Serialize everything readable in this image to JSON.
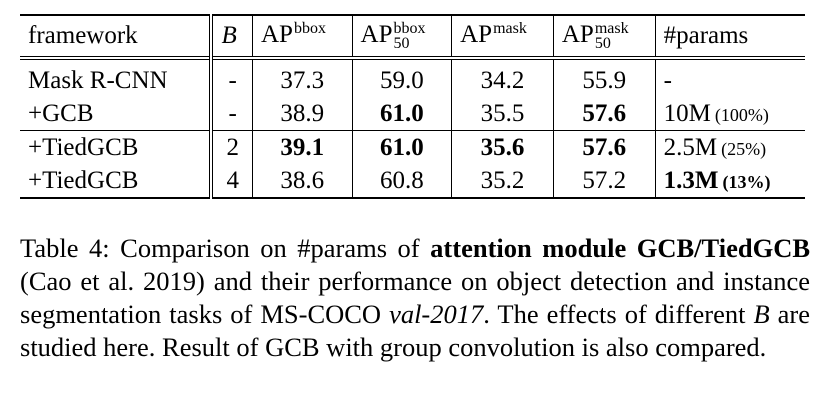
{
  "table": {
    "header": [
      {
        "base": "framework"
      },
      {
        "base": "B",
        "italic": true
      },
      {
        "base": "AP",
        "sup": "bbox"
      },
      {
        "base": "AP",
        "sup": "bbox",
        "sub": "50"
      },
      {
        "base": "AP",
        "sup": "mask"
      },
      {
        "base": "AP",
        "sup": "mask",
        "sub": "50"
      },
      {
        "base": "#params"
      }
    ],
    "rows": [
      [
        {
          "text": "Mask R-CNN"
        },
        {
          "text": "-"
        },
        {
          "text": "37.3"
        },
        {
          "text": "59.0"
        },
        {
          "text": "34.2"
        },
        {
          "text": "55.9"
        },
        {
          "text": "-"
        }
      ],
      [
        {
          "text": "+GCB"
        },
        {
          "text": "-"
        },
        {
          "text": "38.9"
        },
        {
          "text": "61.0",
          "bold": true
        },
        {
          "text": "35.5"
        },
        {
          "text": "57.6",
          "bold": true
        },
        {
          "text": "10M",
          "note": "(100%)"
        }
      ],
      [
        {
          "text": "+TiedGCB"
        },
        {
          "text": "2"
        },
        {
          "text": "39.1",
          "bold": true
        },
        {
          "text": "61.0",
          "bold": true
        },
        {
          "text": "35.6",
          "bold": true
        },
        {
          "text": "57.6",
          "bold": true
        },
        {
          "text": "2.5M",
          "note": "(25%)"
        }
      ],
      [
        {
          "text": "+TiedGCB"
        },
        {
          "text": "4"
        },
        {
          "text": "38.6"
        },
        {
          "text": "60.8"
        },
        {
          "text": "35.2"
        },
        {
          "text": "57.2"
        },
        {
          "text": "1.3M",
          "note": "(13%)",
          "bold": true
        }
      ]
    ]
  },
  "caption": [
    {
      "text": "Table 4: Comparison on #params of "
    },
    {
      "text": "attention module GCB/TiedGCB",
      "bold": true
    },
    {
      "text": " (Cao et al. 2019) and their performance on object detection and instance segmentation tasks of MS-COCO "
    },
    {
      "text": "val-2017",
      "italic": true
    },
    {
      "text": ". The effects of different "
    },
    {
      "text": "B",
      "italic": true
    },
    {
      "text": " are studied here. Result of GCB with group convolution is also compared."
    }
  ]
}
